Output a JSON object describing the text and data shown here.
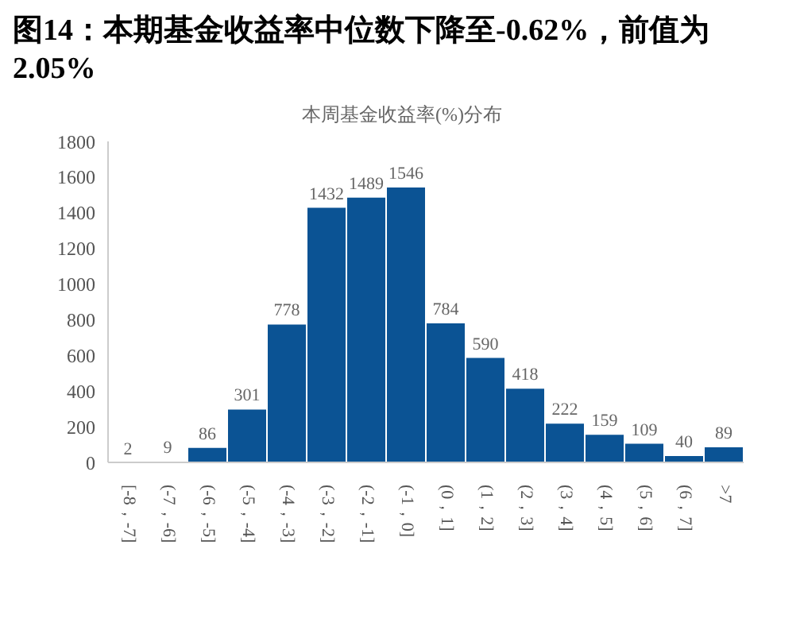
{
  "chart_data": {
    "type": "bar",
    "title": "图14：本期基金收益率中位数下降至-0.62%，前值为2.05%",
    "subtitle": "本周基金收益率(%)分布",
    "categories": [
      "[-8，-7]",
      "(-7，-6]",
      "(-6，-5]",
      "(-5，-4]",
      "(-4，-3]",
      "(-3，-2]",
      "(-2，-1]",
      "(-1，0]",
      "(0，1]",
      "(1，2]",
      "(2，3]",
      "(3，4]",
      "(4，5]",
      "(5，6]",
      "(6，7]",
      ">7"
    ],
    "values": [
      2,
      9,
      86,
      301,
      778,
      1432,
      1489,
      1546,
      784,
      590,
      418,
      222,
      159,
      109,
      40,
      89
    ],
    "color": "#0b5394",
    "ylim": [
      0,
      1800
    ],
    "yticks": [
      0,
      200,
      400,
      600,
      800,
      1000,
      1200,
      1400,
      1600,
      1800
    ],
    "grid": false,
    "data_labels": true
  }
}
